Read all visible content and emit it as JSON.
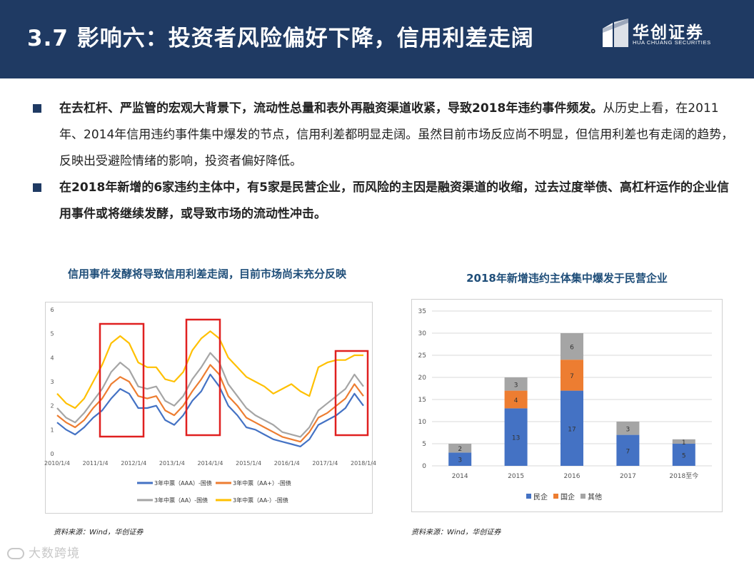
{
  "header": {
    "title": "3.7 影响六：投资者风险偏好下降，信用利差走阔",
    "brand_cn": "华创证券",
    "brand_en": "HUA CHUANG SECURITIES"
  },
  "bullets": [
    {
      "bold": "在去杠杆、严监管的宏观大背景下，流动性总量和表外再融资渠道收紧，导致2018年违约事件频发。",
      "normal": "从历史上看，在2011年、2014年信用违约事件集中爆发的节点，信用利差都明显走阔。虽然目前市场反应尚不明显，但信用利差也有走阔的趋势，反映出受避险情绪的影响，投资者偏好降低。"
    },
    {
      "bold": "在2018年新增的6家违约主体中，有5家是民营企业，而风险的主因是融资渠道的收缩，过去过度举债、高杠杆运作的企业信用事件或将继续发酵，或导致市场的流动性冲击。",
      "normal": ""
    }
  ],
  "chart_data": [
    {
      "type": "line",
      "title": "信用事件发酵将导致信用利差走阔，目前市场尚未充分反映",
      "x_ticks": [
        "2010/1/4",
        "2011/1/4",
        "2012/1/4",
        "2013/1/4",
        "2014/1/4",
        "2015/1/4",
        "2016/1/4",
        "2017/1/4",
        "2018/1/4"
      ],
      "ylim": [
        0,
        6
      ],
      "y_ticks": [
        "0",
        "1",
        "2",
        "3",
        "4",
        "5",
        "6"
      ],
      "x": [
        "2010/1",
        "2010/4",
        "2010/7",
        "2010/10",
        "2011/1",
        "2011/4",
        "2011/7",
        "2011/10",
        "2012/1",
        "2012/4",
        "2012/7",
        "2012/10",
        "2013/1",
        "2013/4",
        "2013/7",
        "2013/10",
        "2014/1",
        "2014/4",
        "2014/7",
        "2014/10",
        "2015/1",
        "2015/4",
        "2015/7",
        "2015/10",
        "2016/1",
        "2016/4",
        "2016/7",
        "2016/10",
        "2017/1",
        "2017/4",
        "2017/7",
        "2017/10",
        "2018/1",
        "2018/4",
        "2018/6"
      ],
      "series": [
        {
          "name": "3年中票（AAA）-国债",
          "color": "#4472c4",
          "values": [
            1.3,
            1.0,
            0.8,
            1.1,
            1.5,
            1.8,
            2.3,
            2.7,
            2.5,
            1.9,
            1.9,
            2.0,
            1.4,
            1.2,
            1.6,
            2.2,
            2.6,
            3.3,
            2.8,
            2.0,
            1.6,
            1.1,
            1.0,
            0.8,
            0.6,
            0.5,
            0.4,
            0.3,
            0.6,
            1.2,
            1.4,
            1.6,
            1.9,
            2.5,
            2.0
          ]
        },
        {
          "name": "3年中票（AA+）-国债",
          "color": "#ed7d31",
          "values": [
            1.6,
            1.3,
            1.1,
            1.4,
            1.9,
            2.3,
            2.9,
            3.2,
            3.0,
            2.4,
            2.3,
            2.4,
            1.8,
            1.6,
            2.0,
            2.6,
            3.1,
            3.7,
            3.3,
            2.4,
            2.0,
            1.5,
            1.3,
            1.1,
            0.9,
            0.7,
            0.6,
            0.5,
            0.9,
            1.5,
            1.7,
            2.0,
            2.3,
            2.9,
            2.4
          ]
        },
        {
          "name": "3年中票（AA）-国债",
          "color": "#a5a5a5",
          "values": [
            1.9,
            1.5,
            1.3,
            1.7,
            2.2,
            2.7,
            3.4,
            3.8,
            3.5,
            2.8,
            2.7,
            2.8,
            2.2,
            2.0,
            2.4,
            3.1,
            3.6,
            4.2,
            3.8,
            2.9,
            2.4,
            1.9,
            1.6,
            1.4,
            1.2,
            0.9,
            0.8,
            0.7,
            1.1,
            1.8,
            2.1,
            2.4,
            2.7,
            3.3,
            2.8
          ]
        },
        {
          "name": "3年中票（AA-）-国债",
          "color": "#ffc000",
          "values": [
            2.5,
            2.1,
            1.9,
            2.3,
            3.0,
            3.7,
            4.6,
            4.9,
            4.6,
            3.8,
            3.6,
            3.6,
            3.1,
            3.0,
            3.4,
            4.3,
            4.8,
            5.1,
            4.8,
            4.0,
            3.6,
            3.2,
            3.0,
            2.8,
            2.5,
            2.7,
            2.9,
            2.6,
            2.4,
            3.6,
            3.8,
            3.9,
            3.9,
            4.1,
            4.1
          ]
        }
      ],
      "source": "资料来源：Wind，华创证券"
    },
    {
      "type": "bar",
      "title": "2018年新增违约主体集中爆发于民营企业",
      "categories": [
        "2014",
        "2015",
        "2016",
        "2017",
        "2018至今"
      ],
      "ylim": [
        0,
        35
      ],
      "y_ticks": [
        "0",
        "5",
        "10",
        "15",
        "20",
        "25",
        "30",
        "35"
      ],
      "series": [
        {
          "name": "民企",
          "color": "#4472c4",
          "values": [
            3,
            13,
            17,
            7,
            5
          ]
        },
        {
          "name": "国企",
          "color": "#ed7d31",
          "values": [
            0,
            4,
            7,
            0,
            0
          ]
        },
        {
          "name": "其他",
          "color": "#a5a5a5",
          "values": [
            2,
            3,
            6,
            3,
            1
          ]
        }
      ],
      "source": "资料来源：Wind，华创证券"
    }
  ],
  "watermark": "大数跨境"
}
